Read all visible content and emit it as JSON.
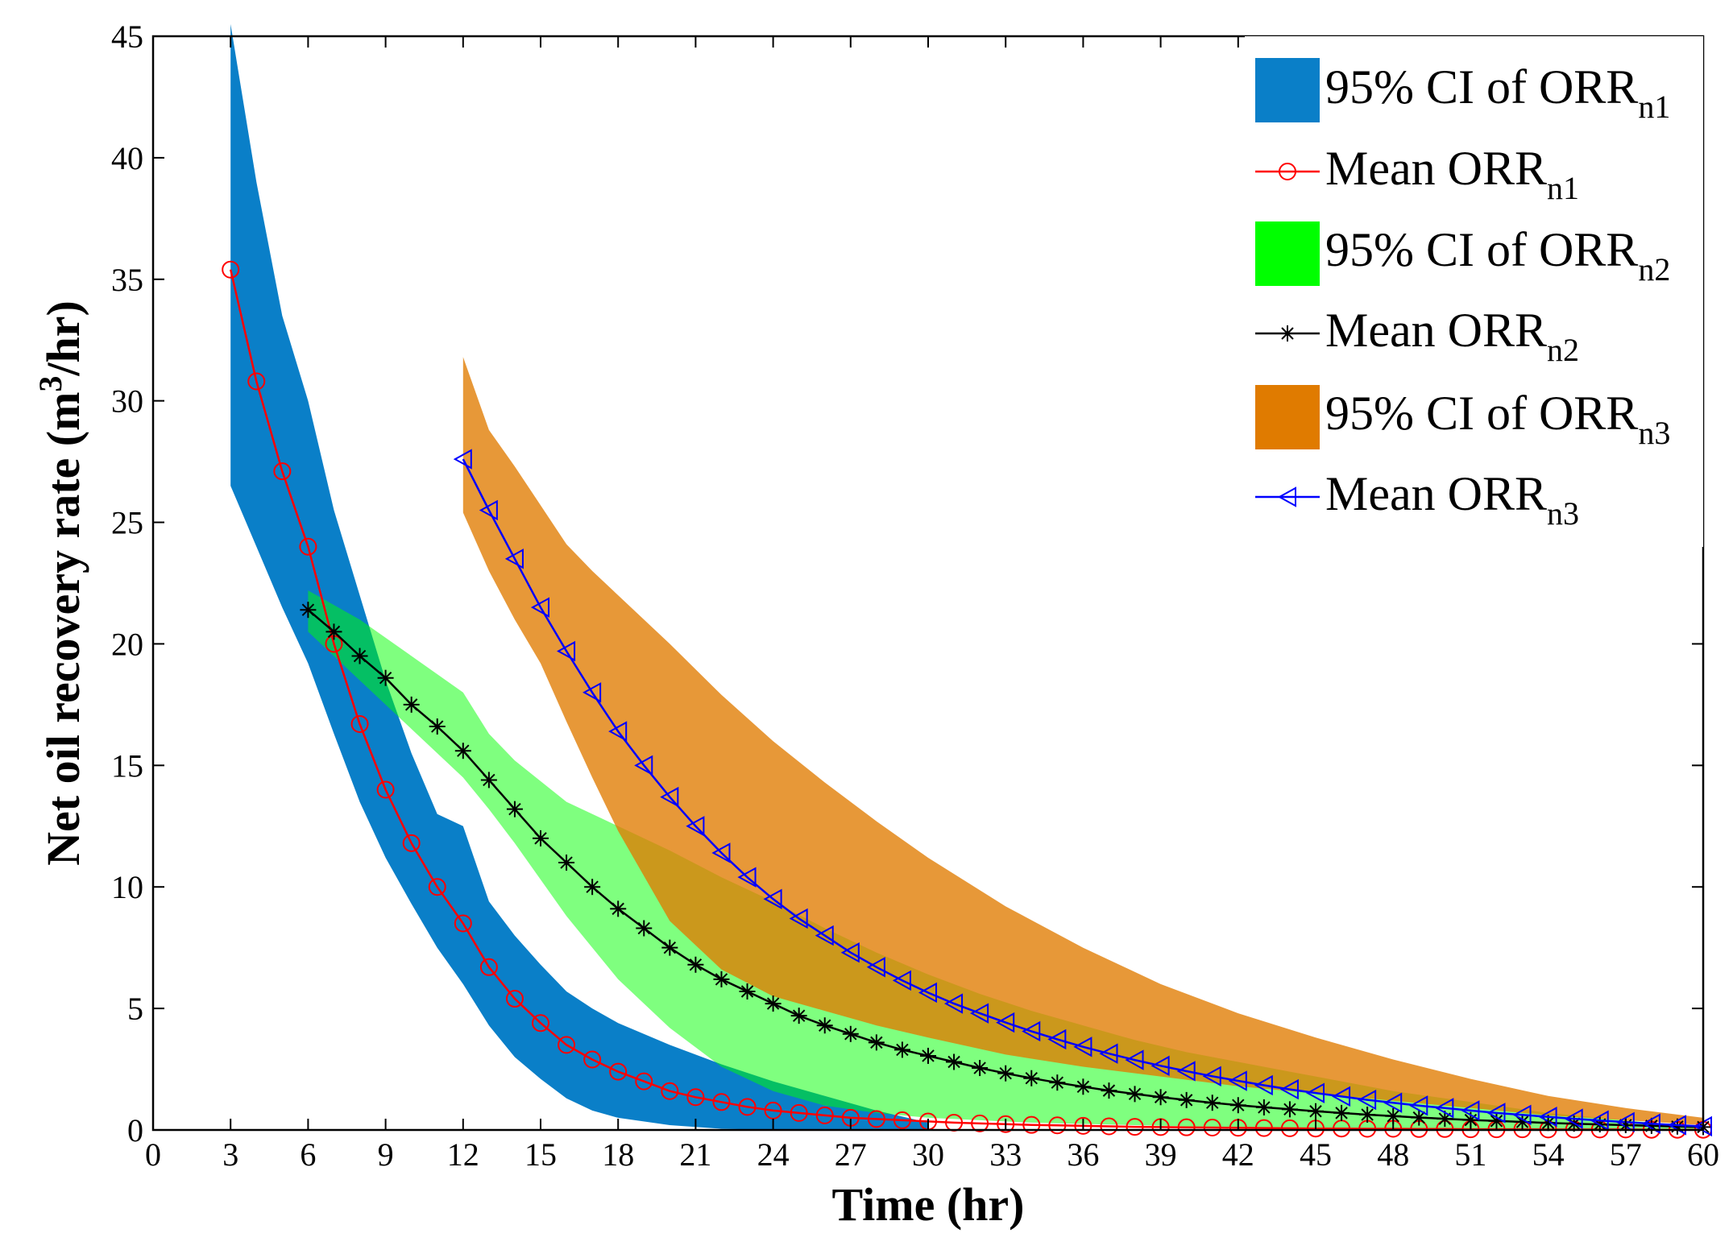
{
  "chart_data": {
    "type": "line",
    "title": "",
    "xlabel": "Time (hr)",
    "ylabel": "Net oil recovery rate (m3/hr)",
    "ylabel_parts": {
      "before": "Net oil recovery rate (m",
      "sup": "3",
      "after": "/hr)"
    },
    "xlim": [
      0,
      60
    ],
    "ylim": [
      0,
      45
    ],
    "xticks": [
      "0",
      "3",
      "6",
      "9",
      "12",
      "15",
      "18",
      "21",
      "24",
      "27",
      "30",
      "33",
      "36",
      "39",
      "42",
      "45",
      "48",
      "51",
      "54",
      "57",
      "60"
    ],
    "yticks": [
      "0",
      "5",
      "10",
      "15",
      "20",
      "25",
      "30",
      "35",
      "40",
      "45"
    ],
    "grid": false,
    "legend_position": "top-right",
    "bands": [
      {
        "name": "95% CI of ORRn1",
        "label_main": "95% CI of ORR",
        "label_sub": "n1",
        "color": "#0a7fc8",
        "x": [
          3,
          4,
          5,
          6,
          7,
          8,
          9,
          10,
          11,
          12,
          13,
          14,
          15,
          16,
          17,
          18,
          20,
          22,
          24,
          26,
          28,
          30
        ],
        "upper": [
          45.5,
          39,
          33.5,
          30,
          25.5,
          22,
          18.5,
          15.5,
          13,
          12.5,
          9.4,
          8,
          6.8,
          5.7,
          5,
          4.4,
          3.5,
          2.7,
          2,
          1.4,
          0.8,
          0.3
        ],
        "lower": [
          26.5,
          24,
          21.5,
          19.2,
          16.3,
          13.5,
          11.2,
          9.3,
          7.5,
          6,
          4.3,
          3,
          2.1,
          1.3,
          0.8,
          0.5,
          0.2,
          0.05,
          0,
          0,
          0,
          0
        ]
      },
      {
        "name": "95% CI of ORRn2",
        "label_main": "95% CI of ORR",
        "label_sub": "n2",
        "color": "#00ff00",
        "opacity": 0.5,
        "x": [
          6,
          8,
          10,
          12,
          13,
          14,
          16,
          18,
          20,
          22,
          24,
          26,
          28,
          30,
          32,
          34,
          36,
          38,
          40,
          42,
          44,
          46,
          48,
          50,
          52,
          54,
          56,
          58,
          60
        ],
        "upper": [
          22.2,
          21,
          19.5,
          18,
          16.3,
          15.2,
          13.5,
          12.5,
          11.5,
          10.4,
          9.4,
          8.3,
          7.3,
          6.4,
          5.6,
          4.9,
          4.3,
          3.7,
          3.2,
          2.8,
          2.4,
          2.0,
          1.6,
          1.3,
          1.0,
          0.7,
          0.5,
          0.3,
          0.1
        ],
        "lower": [
          20.5,
          18.5,
          16.5,
          14.5,
          13.2,
          11.8,
          8.8,
          6.2,
          4.2,
          2.6,
          1.6,
          1.0,
          0.7,
          0.5,
          0.4,
          0.3,
          0.25,
          0.2,
          0.15,
          0.12,
          0.1,
          0.08,
          0.06,
          0.05,
          0.04,
          0.03,
          0.02,
          0.01,
          0
        ]
      },
      {
        "name": "95% CI of ORRn3",
        "label_main": "95% CI of ORR",
        "label_sub": "n3",
        "color": "#e07b00",
        "opacity": 0.78,
        "x": [
          12,
          13,
          14,
          15,
          16,
          17,
          18,
          20,
          22,
          24,
          26,
          28,
          30,
          33,
          36,
          39,
          42,
          45,
          48,
          51,
          54,
          57,
          60
        ],
        "upper": [
          31.8,
          28.8,
          27.3,
          25.7,
          24.1,
          23,
          22,
          20,
          17.9,
          16,
          14.3,
          12.7,
          11.2,
          9.2,
          7.5,
          6.0,
          4.8,
          3.8,
          2.9,
          2.1,
          1.4,
          0.9,
          0.5
        ],
        "lower": [
          25.4,
          23,
          21,
          19.2,
          16.8,
          14.5,
          12.3,
          8.6,
          6.6,
          5.5,
          4.9,
          4.3,
          3.8,
          3.1,
          2.6,
          2.2,
          1.8,
          1.5,
          1.2,
          0.9,
          0.6,
          0.4,
          0.2
        ]
      }
    ],
    "series": [
      {
        "name": "Mean ORRn1",
        "label_main": "Mean ORR",
        "label_sub": "n1",
        "color": "#ff0000",
        "marker": "circle",
        "x": [
          3,
          4,
          5,
          6,
          7,
          8,
          9,
          10,
          11,
          12,
          13,
          14,
          15,
          16,
          17,
          18,
          19,
          20,
          21,
          22,
          23,
          24,
          25,
          26,
          27,
          28,
          29,
          30,
          31,
          32,
          33,
          34,
          35,
          36,
          37,
          38,
          39,
          40,
          41,
          42,
          43,
          44,
          45,
          46,
          47,
          48,
          49,
          50,
          51,
          52,
          53,
          54,
          55,
          56,
          57,
          58,
          59,
          60
        ],
        "values": [
          35.4,
          30.8,
          27.1,
          24.0,
          20.0,
          16.7,
          14.0,
          11.8,
          10.0,
          8.5,
          6.7,
          5.4,
          4.4,
          3.5,
          2.9,
          2.4,
          2.0,
          1.6,
          1.35,
          1.15,
          0.95,
          0.8,
          0.7,
          0.6,
          0.5,
          0.45,
          0.4,
          0.35,
          0.3,
          0.27,
          0.24,
          0.21,
          0.19,
          0.17,
          0.15,
          0.13,
          0.12,
          0.11,
          0.1,
          0.09,
          0.08,
          0.07,
          0.06,
          0.06,
          0.05,
          0.05,
          0.04,
          0.04,
          0.03,
          0.03,
          0.03,
          0.02,
          0.02,
          0.02,
          0.02,
          0.01,
          0.01,
          0.01
        ]
      },
      {
        "name": "Mean ORRn2",
        "label_main": "Mean ORR",
        "label_sub": "n2",
        "color": "#000000",
        "marker": "asterisk",
        "x": [
          6,
          7,
          8,
          9,
          10,
          11,
          12,
          13,
          14,
          15,
          16,
          17,
          18,
          19,
          20,
          21,
          22,
          23,
          24,
          25,
          26,
          27,
          28,
          29,
          30,
          31,
          32,
          33,
          34,
          35,
          36,
          37,
          38,
          39,
          40,
          41,
          42,
          43,
          44,
          45,
          46,
          47,
          48,
          49,
          50,
          51,
          52,
          53,
          54,
          55,
          56,
          57,
          58,
          59,
          60
        ],
        "values": [
          21.4,
          20.5,
          19.5,
          18.6,
          17.5,
          16.6,
          15.6,
          14.4,
          13.2,
          12.0,
          11.0,
          10.0,
          9.1,
          8.3,
          7.5,
          6.8,
          6.2,
          5.7,
          5.2,
          4.7,
          4.3,
          3.95,
          3.6,
          3.3,
          3.05,
          2.8,
          2.55,
          2.33,
          2.13,
          1.95,
          1.78,
          1.62,
          1.48,
          1.35,
          1.23,
          1.12,
          1.02,
          0.93,
          0.85,
          0.77,
          0.7,
          0.63,
          0.57,
          0.51,
          0.46,
          0.41,
          0.37,
          0.33,
          0.29,
          0.26,
          0.23,
          0.2,
          0.17,
          0.14,
          0.12
        ]
      },
      {
        "name": "Mean ORRn3",
        "label_main": "Mean ORR",
        "label_sub": "n3",
        "color": "#0000ff",
        "marker": "triangle-left",
        "x": [
          12,
          13,
          14,
          15,
          16,
          17,
          18,
          19,
          20,
          21,
          22,
          23,
          24,
          25,
          26,
          27,
          28,
          29,
          30,
          31,
          32,
          33,
          34,
          35,
          36,
          37,
          38,
          39,
          40,
          41,
          42,
          43,
          44,
          45,
          46,
          47,
          48,
          49,
          50,
          51,
          52,
          53,
          54,
          55,
          56,
          57,
          58,
          59,
          60
        ],
        "values": [
          27.6,
          25.5,
          23.5,
          21.5,
          19.7,
          18.0,
          16.4,
          15.0,
          13.7,
          12.5,
          11.4,
          10.4,
          9.5,
          8.7,
          8.0,
          7.3,
          6.7,
          6.15,
          5.65,
          5.2,
          4.8,
          4.42,
          4.06,
          3.73,
          3.42,
          3.14,
          2.88,
          2.64,
          2.42,
          2.21,
          2.02,
          1.84,
          1.67,
          1.52,
          1.38,
          1.24,
          1.12,
          1.0,
          0.9,
          0.8,
          0.7,
          0.62,
          0.54,
          0.46,
          0.39,
          0.32,
          0.26,
          0.2,
          0.15
        ]
      }
    ]
  }
}
